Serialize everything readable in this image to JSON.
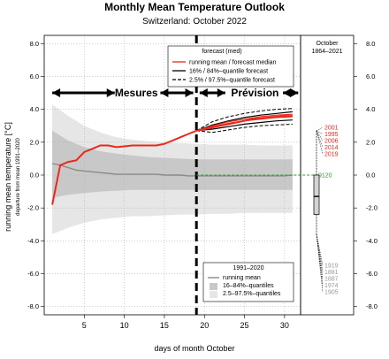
{
  "chart_data": {
    "type": "line",
    "title": "Monthly Mean Temperature Outlook",
    "subtitle": "Switzerland: October 2022",
    "xlabel": "days of month October",
    "ylabel": "running mean temperature [°C]",
    "ylabel_sub": "departure from mean 1991–2020",
    "xlim": [
      0,
      32
    ],
    "ylim": [
      -8.5,
      8.5
    ],
    "xticks": [
      5,
      10,
      15,
      20,
      25,
      30
    ],
    "yticks": [
      -8,
      -6,
      -4,
      -2,
      0,
      2,
      4,
      6,
      8
    ],
    "ytick_labels": [
      "-8.0",
      "-6.0",
      "-4.0",
      "-2.0",
      "0.0",
      "2.0",
      "4.0",
      "6.0",
      "8.0"
    ],
    "grid": true,
    "split_day": 19,
    "label_observed": "Mesures",
    "label_forecast": "Prévision",
    "climatology_legend": {
      "title": "1991–2020",
      "entries": [
        "running mean",
        "16–84%–quantiles",
        "2.5–97.5%–quantiles"
      ]
    },
    "forecast_legend": {
      "title": "forecast (med)",
      "entries": [
        "running mean / forecast median",
        "16% / 84%–quantile forecast",
        "2.5% / 97.5%–quantile forecast"
      ]
    },
    "series": [
      {
        "name": "running mean / forecast median",
        "color": "#e8291c",
        "x": [
          1,
          2,
          3,
          4,
          5,
          6,
          7,
          8,
          9,
          10,
          11,
          12,
          13,
          14,
          15,
          16,
          17,
          18,
          19,
          20,
          21,
          22,
          23,
          24,
          25,
          26,
          27,
          28,
          29,
          30,
          31
        ],
        "y": [
          -1.8,
          0.6,
          0.8,
          0.9,
          1.4,
          1.6,
          1.8,
          1.8,
          1.7,
          1.75,
          1.8,
          1.8,
          1.8,
          1.8,
          1.9,
          2.1,
          2.3,
          2.5,
          2.7,
          2.8,
          2.9,
          3.0,
          3.1,
          3.2,
          3.3,
          3.4,
          3.45,
          3.5,
          3.55,
          3.6,
          3.6
        ]
      },
      {
        "name": "climatology running mean",
        "color": "#8a8a8a",
        "x": [
          1,
          2,
          3,
          4,
          5,
          6,
          7,
          8,
          9,
          10,
          11,
          12,
          13,
          14,
          15,
          16,
          17,
          18,
          19,
          20,
          21,
          22,
          23,
          24,
          25,
          26,
          27,
          28,
          29,
          30,
          31
        ],
        "y": [
          0.7,
          0.6,
          0.45,
          0.3,
          0.25,
          0.2,
          0.15,
          0.1,
          0.05,
          0.05,
          0.05,
          0.05,
          0.05,
          0.05,
          0.0,
          0.0,
          0.0,
          -0.05,
          -0.05,
          -0.05,
          -0.05,
          -0.05,
          -0.05,
          -0.05,
          -0.05,
          -0.05,
          -0.05,
          -0.05,
          -0.05,
          -0.05,
          0.0
        ]
      },
      {
        "name": "16% quantile forecast",
        "color": "#000000",
        "x": [
          19,
          21,
          23,
          25,
          27,
          29,
          31
        ],
        "y": [
          2.7,
          2.8,
          2.95,
          3.1,
          3.2,
          3.3,
          3.35
        ]
      },
      {
        "name": "84% quantile forecast",
        "color": "#000000",
        "x": [
          19,
          21,
          23,
          25,
          27,
          29,
          31
        ],
        "y": [
          2.7,
          3.05,
          3.3,
          3.5,
          3.65,
          3.75,
          3.85
        ]
      },
      {
        "name": "2.5% quantile forecast",
        "color": "#000000",
        "x": [
          19,
          21,
          23,
          25,
          27,
          29,
          31
        ],
        "y": [
          2.7,
          2.6,
          2.75,
          2.9,
          3.0,
          3.05,
          3.1
        ]
      },
      {
        "name": "97.5% quantile forecast",
        "color": "#000000",
        "x": [
          19,
          21,
          23,
          25,
          27,
          29,
          31
        ],
        "y": [
          2.7,
          3.25,
          3.55,
          3.75,
          3.9,
          4.0,
          4.05
        ]
      },
      {
        "name": "forecast ensemble member a",
        "color": "#e8291c",
        "x": [
          19,
          21,
          23,
          25,
          27,
          29,
          31
        ],
        "y": [
          2.7,
          2.95,
          3.15,
          3.3,
          3.4,
          3.5,
          3.55
        ]
      },
      {
        "name": "forecast ensemble member b",
        "color": "#e8291c",
        "x": [
          19,
          21,
          23,
          25,
          27,
          29,
          31
        ],
        "y": [
          2.7,
          3.0,
          3.25,
          3.4,
          3.55,
          3.65,
          3.7
        ]
      }
    ],
    "bands": [
      {
        "name": "2.5–97.5%–quantiles",
        "color": "#e6e6e6",
        "x": [
          1,
          3,
          5,
          7,
          9,
          11,
          13,
          15,
          17,
          19,
          21,
          23,
          25,
          27,
          29,
          31
        ],
        "upper": [
          4.3,
          3.6,
          3.0,
          2.6,
          2.3,
          2.15,
          2.05,
          2.0,
          1.95,
          1.9,
          1.85,
          1.85,
          1.85,
          1.8,
          1.8,
          1.8
        ],
        "lower": [
          -3.6,
          -3.2,
          -2.9,
          -2.7,
          -2.6,
          -2.5,
          -2.5,
          -2.45,
          -2.4,
          -2.4,
          -2.35,
          -2.35,
          -2.3,
          -2.3,
          -2.3,
          -2.3
        ]
      },
      {
        "name": "16–84%–quantiles",
        "color": "#c8c8c8",
        "x": [
          1,
          3,
          5,
          7,
          9,
          11,
          13,
          15,
          17,
          19,
          21,
          23,
          25,
          27,
          29,
          31
        ],
        "upper": [
          2.7,
          2.1,
          1.7,
          1.45,
          1.3,
          1.2,
          1.1,
          1.05,
          1.0,
          0.95,
          0.95,
          0.95,
          0.95,
          0.95,
          0.95,
          0.95
        ],
        "lower": [
          -1.4,
          -1.2,
          -1.1,
          -1.0,
          -0.95,
          -0.9,
          -0.9,
          -0.9,
          -0.9,
          -0.9,
          -0.9,
          -0.9,
          -0.9,
          -0.9,
          -0.9,
          -0.9
        ]
      }
    ],
    "side_panel": {
      "title_line1": "October",
      "title_line2": "1864–2021",
      "box": {
        "q1": -2.4,
        "median": -1.3,
        "q3": 0.0,
        "whisker_low": -3.6,
        "whisker_high": 2.7
      },
      "current_value_label": "9120",
      "warm_years": [
        {
          "year": "2001",
          "value": 2.9,
          "color": "#e8291c"
        },
        {
          "year": "1995",
          "value": 2.5,
          "color": "#e8291c"
        },
        {
          "year": "2006",
          "value": 2.1,
          "color": "#e8291c"
        },
        {
          "year": "2014",
          "value": 1.7,
          "color": "#e8291c"
        },
        {
          "year": "2019",
          "value": 1.3,
          "color": "#e8291c"
        }
      ],
      "cold_years": [
        {
          "year": "1919",
          "value": -5.5,
          "color": "#999999"
        },
        {
          "year": "1881",
          "value": -5.9,
          "color": "#999999"
        },
        {
          "year": "1887",
          "value": -6.3,
          "color": "#999999"
        },
        {
          "year": "1974",
          "value": -6.7,
          "color": "#999999"
        },
        {
          "year": "1905",
          "value": -7.1,
          "color": "#999999"
        }
      ]
    }
  }
}
